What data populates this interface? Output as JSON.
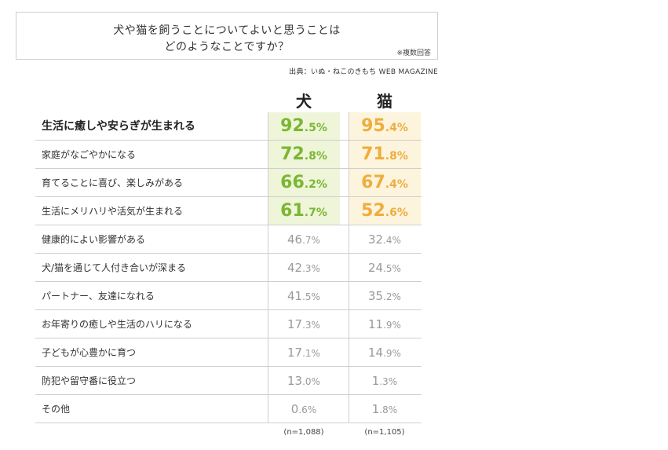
{
  "title": {
    "line1": "犬や猫を飼うことについてよいと思うことは",
    "line2": "どのようなことですか？",
    "note": "※複数回答"
  },
  "source": "出典：いぬ・ねこのきもち WEB MAGAZINE",
  "colors": {
    "dog_accent": "#7cb632",
    "cat_accent": "#efad3f",
    "dog_highlight_bg": "#eef5d8",
    "cat_highlight_bg": "#fcf4dc"
  },
  "chart_data": {
    "type": "table",
    "title": "犬や猫を飼うことについてよいと思うことはどのようなことですか？",
    "columns": [
      "犬",
      "猫"
    ],
    "unit": "%",
    "rows": [
      {
        "label": "生活に癒しや安らぎが生まれる",
        "dog": "92.5",
        "cat": "95.4",
        "highlight": true,
        "emphasis": true
      },
      {
        "label": "家庭がなごやかになる",
        "dog": "72.8",
        "cat": "71.8",
        "highlight": true
      },
      {
        "label": "育てることに喜び、楽しみがある",
        "dog": "66.2",
        "cat": "67.4",
        "highlight": true
      },
      {
        "label": "生活にメリハリや活気が生まれる",
        "dog": "61.7",
        "cat": "52.6",
        "highlight": true
      },
      {
        "label": "健康的によい影響がある",
        "dog": "46.7",
        "cat": "32.4"
      },
      {
        "label": "犬/猫を通じて人付き合いが深まる",
        "dog": "42.3",
        "cat": "24.5"
      },
      {
        "label": "パートナー、友達になれる",
        "dog": "41.5",
        "cat": "35.2"
      },
      {
        "label": "お年寄りの癒しや生活のハリになる",
        "dog": "17.3",
        "cat": "11.9"
      },
      {
        "label": "子どもが心豊かに育つ",
        "dog": "17.1",
        "cat": "14.9"
      },
      {
        "label": "防犯や留守番に役立つ",
        "dog": "13.0",
        "cat": "1.3"
      },
      {
        "label": "その他",
        "dog": "0.6",
        "cat": "1.8"
      }
    ],
    "sample_sizes": [
      "(n=1,088)",
      "(n=1,105)"
    ]
  }
}
